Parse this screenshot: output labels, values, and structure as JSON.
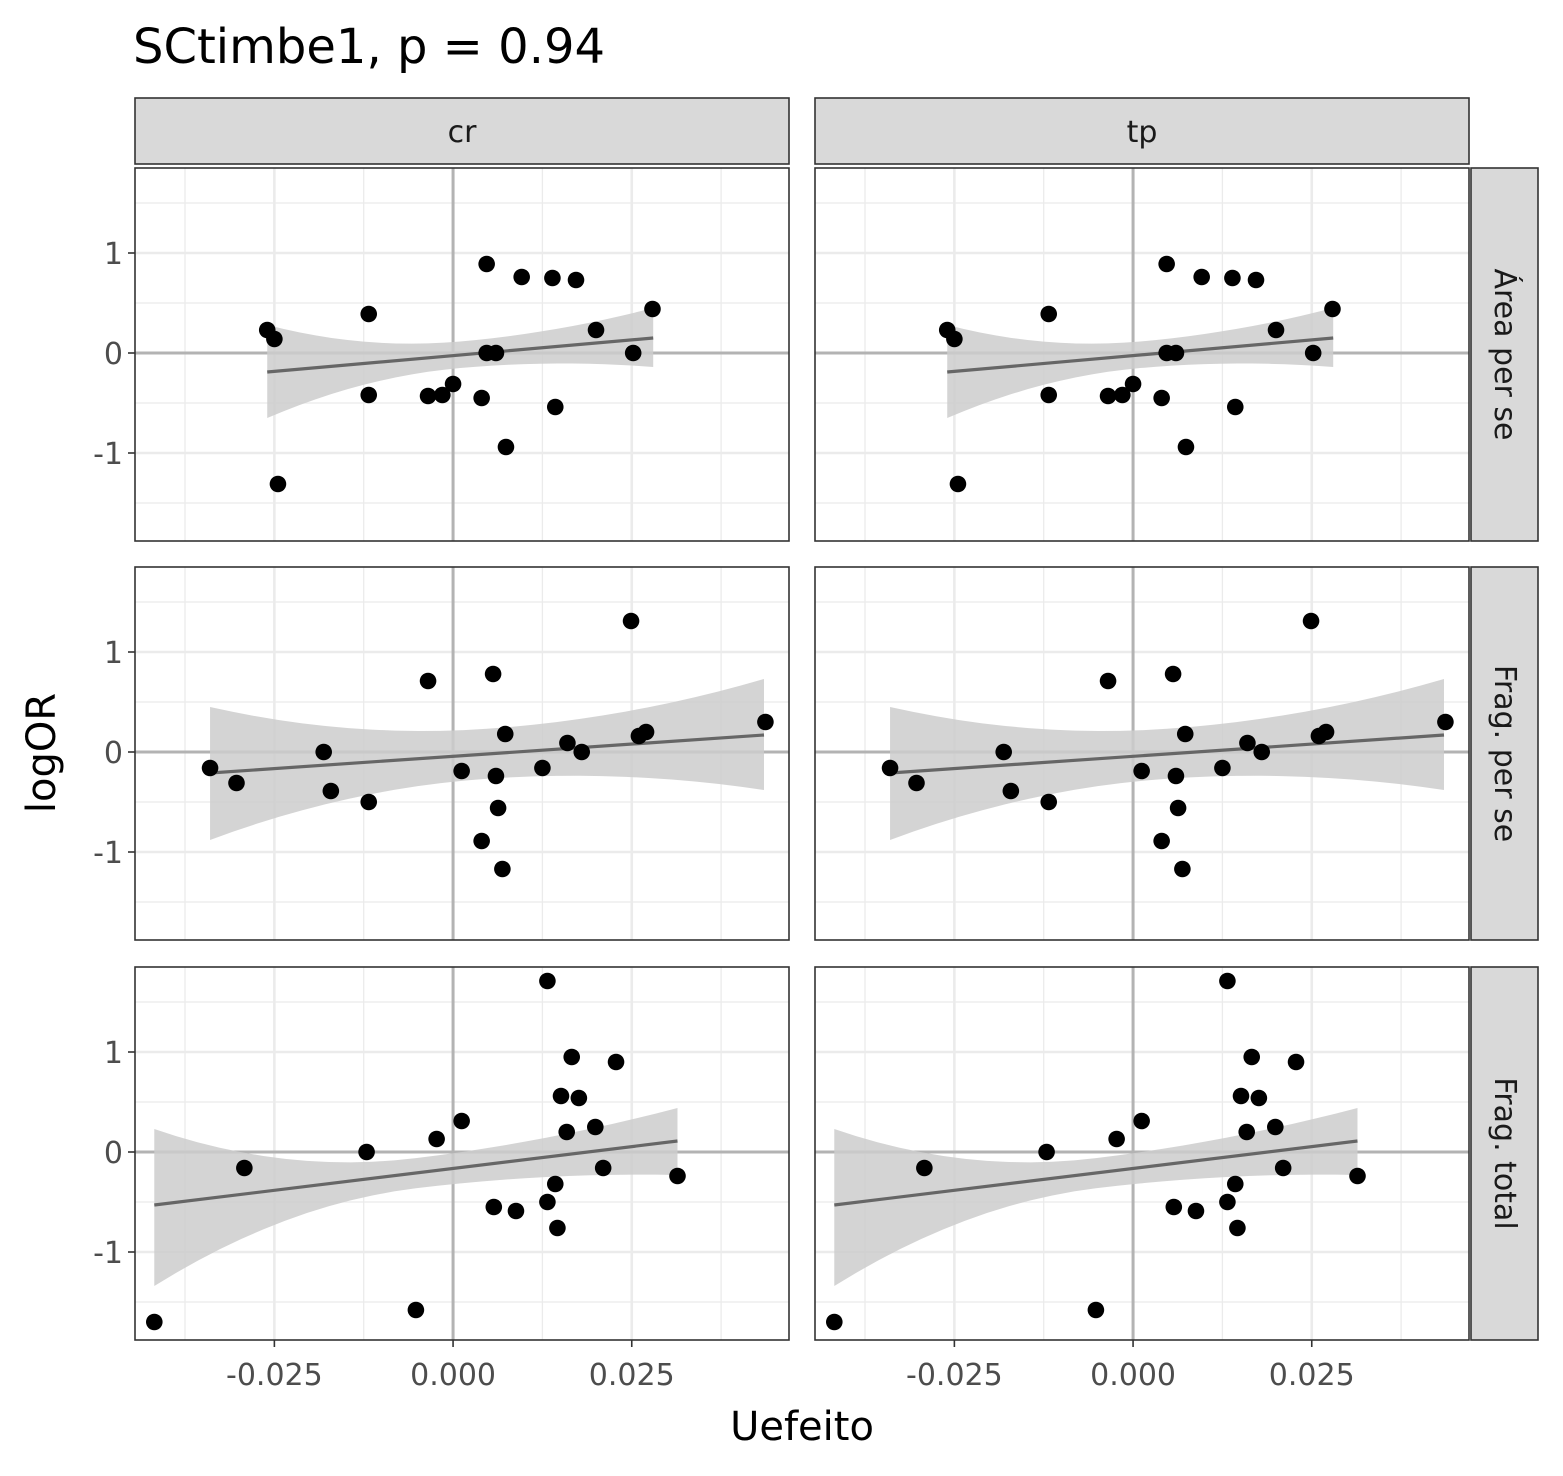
{
  "chart_data": {
    "type": "scatter",
    "title": "SCtimbe1, p = 0.94",
    "xlabel": "Uefeito",
    "ylabel": "logOR",
    "columns": [
      "cr",
      "tp"
    ],
    "rows": [
      "Área per se",
      "Frag. per se",
      "Frag. total"
    ],
    "xlim": [
      -0.0445,
      0.047
    ],
    "ylim": [
      -1.88,
      1.85
    ],
    "x_ticks": [
      -0.025,
      0.0,
      0.025
    ],
    "x_tick_labels": [
      "-0.025",
      "0.000",
      "0.025"
    ],
    "y_ticks": [
      -1,
      0,
      1
    ],
    "y_tick_labels": [
      "-1",
      "0",
      "1"
    ],
    "grid": true,
    "reference_lines": {
      "x": 0,
      "y": 0
    },
    "colors": {
      "points": "#000000",
      "fit_line": "#666666",
      "ribbon": "#cccccc",
      "reference": "#b3b3b3",
      "strip_fill": "#d9d9d9",
      "panel_border": "#333333",
      "grid": "#ebebeb"
    },
    "panels": [
      {
        "row": "Área per se",
        "points": [
          [
            -0.026,
            0.23
          ],
          [
            -0.025,
            0.14
          ],
          [
            -0.0245,
            -1.31
          ],
          [
            -0.0118,
            0.39
          ],
          [
            -0.0118,
            -0.42
          ],
          [
            -0.0035,
            -0.43
          ],
          [
            -0.0015,
            -0.42
          ],
          [
            0.0,
            -0.31
          ],
          [
            0.004,
            -0.45
          ],
          [
            0.0047,
            0.89
          ],
          [
            0.0047,
            0.0
          ],
          [
            0.006,
            0.0
          ],
          [
            0.0074,
            -0.94
          ],
          [
            0.0096,
            0.76
          ],
          [
            0.0139,
            0.75
          ],
          [
            0.0143,
            -0.54
          ],
          [
            0.0172,
            0.73
          ],
          [
            0.02,
            0.23
          ],
          [
            0.0252,
            0.0
          ],
          [
            0.0279,
            0.44
          ]
        ],
        "fit": {
          "x": [
            -0.026,
            0.028
          ],
          "y": [
            -0.19,
            0.15
          ],
          "lower": [
            -0.65,
            -0.14
          ],
          "upper": [
            0.28,
            0.45
          ]
        }
      },
      {
        "row": "Frag. per se",
        "points": [
          [
            -0.034,
            -0.16
          ],
          [
            -0.0303,
            -0.31
          ],
          [
            -0.0181,
            0.0
          ],
          [
            -0.0171,
            -0.39
          ],
          [
            -0.0118,
            -0.5
          ],
          [
            -0.0035,
            0.71
          ],
          [
            0.0012,
            -0.19
          ],
          [
            0.004,
            -0.89
          ],
          [
            0.0056,
            0.78
          ],
          [
            0.006,
            -0.24
          ],
          [
            0.0063,
            -0.56
          ],
          [
            0.0069,
            -1.17
          ],
          [
            0.0073,
            0.18
          ],
          [
            0.0125,
            -0.16
          ],
          [
            0.016,
            0.09
          ],
          [
            0.018,
            0.0
          ],
          [
            0.0249,
            1.31
          ],
          [
            0.026,
            0.16
          ],
          [
            0.027,
            0.2
          ],
          [
            0.0437,
            0.3
          ]
        ],
        "fit": {
          "x": [
            -0.034,
            0.0435
          ],
          "y": [
            -0.21,
            0.17
          ],
          "lower": [
            -0.88,
            -0.38
          ],
          "upper": [
            0.45,
            0.73
          ]
        }
      },
      {
        "row": "Frag. total",
        "points": [
          [
            -0.0418,
            -1.7
          ],
          [
            -0.0292,
            -0.16
          ],
          [
            -0.0121,
            0.0
          ],
          [
            -0.0052,
            -1.58
          ],
          [
            -0.0023,
            0.13
          ],
          [
            0.0012,
            0.31
          ],
          [
            0.0057,
            -0.55
          ],
          [
            0.0088,
            -0.59
          ],
          [
            0.0132,
            1.71
          ],
          [
            0.0132,
            -0.5
          ],
          [
            0.0143,
            -0.32
          ],
          [
            0.0146,
            -0.76
          ],
          [
            0.0151,
            0.56
          ],
          [
            0.0159,
            0.2
          ],
          [
            0.0166,
            0.95
          ],
          [
            0.0176,
            0.54
          ],
          [
            0.0199,
            0.25
          ],
          [
            0.021,
            -0.16
          ],
          [
            0.0228,
            0.9
          ],
          [
            0.0314,
            -0.24
          ]
        ],
        "fit": {
          "x": [
            -0.0418,
            0.0314
          ],
          "y": [
            -0.53,
            0.11
          ],
          "lower": [
            -1.34,
            -0.23
          ],
          "upper": [
            0.23,
            0.44
          ]
        }
      }
    ]
  }
}
